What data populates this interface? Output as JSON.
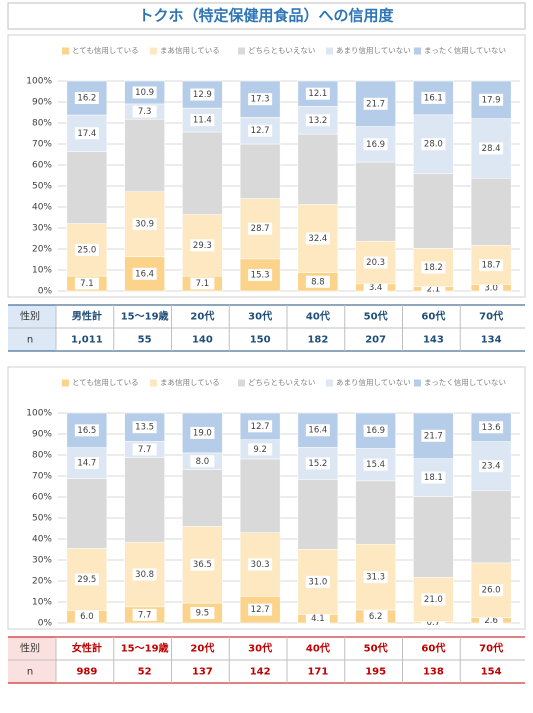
{
  "title": "トクホ（特定保健用食品）への信用度",
  "chart_data": [
    {
      "type": "bar",
      "stacked": true,
      "grid": true,
      "legend": "top",
      "categories": [
        "男性計",
        "15～19歳",
        "20代",
        "30代",
        "40代",
        "50代",
        "60代",
        "70代"
      ],
      "ylim": [
        0,
        100
      ],
      "yticks": [
        {
          "value": 0,
          "label": "0%"
        },
        {
          "value": 10,
          "label": "10%"
        },
        {
          "value": 20,
          "label": "20%"
        },
        {
          "value": 30,
          "label": "30%"
        },
        {
          "value": 40,
          "label": "40%"
        },
        {
          "value": 50,
          "label": "50%"
        },
        {
          "value": 60,
          "label": "60%"
        },
        {
          "value": 70,
          "label": "70%"
        },
        {
          "value": 80,
          "label": "80%"
        },
        {
          "value": 90,
          "label": "90%"
        },
        {
          "value": 100,
          "label": "100%"
        }
      ],
      "series": [
        {
          "name": "とても信用している",
          "color": "#fbd38a",
          "values": [
            7.1,
            16.4,
            7.1,
            15.3,
            8.8,
            3.4,
            2.1,
            3.0
          ],
          "value_labels": [
            "7.1",
            "16.4",
            "7.1",
            "15.3",
            "8.8",
            "3.4",
            "2.1",
            "3.0"
          ]
        },
        {
          "name": "まあ信用している",
          "color": "#fde8c2",
          "values": [
            25.0,
            30.9,
            29.3,
            28.7,
            32.4,
            20.3,
            18.2,
            18.7
          ],
          "value_labels": [
            "25.0",
            "30.9",
            "29.3",
            "28.7",
            "32.4",
            "20.3",
            "18.2",
            "18.7"
          ]
        },
        {
          "name": "どちらともいえない",
          "color": "#d9d9d9",
          "values": [
            34.3,
            34.5,
            39.3,
            26.0,
            33.5,
            37.7,
            35.6,
            32.0
          ]
        },
        {
          "name": "あまり信用していない",
          "color": "#dde7f4",
          "values": [
            17.4,
            7.3,
            11.4,
            12.7,
            13.2,
            16.9,
            28.0,
            28.4
          ],
          "value_labels": [
            "17.4",
            "7.3",
            "11.4",
            "12.7",
            "13.2",
            "16.9",
            "28.0",
            "28.4"
          ]
        },
        {
          "name": "まったく信用していない",
          "color": "#b6cdea",
          "values": [
            16.2,
            10.9,
            12.9,
            17.3,
            12.1,
            21.7,
            16.1,
            17.9
          ],
          "value_labels": [
            "16.2",
            "10.9",
            "12.9",
            "17.3",
            "12.1",
            "21.7",
            "16.1",
            "17.9"
          ]
        }
      ],
      "table": {
        "row_header": "性別",
        "n_label": "n",
        "n": [
          {
            "value": 1011,
            "label": "1,011"
          },
          55,
          140,
          150,
          182,
          207,
          143,
          134
        ]
      }
    },
    {
      "type": "bar",
      "stacked": true,
      "grid": true,
      "legend": "top",
      "categories": [
        "女性計",
        "15～19歳",
        "20代",
        "30代",
        "40代",
        "50代",
        "60代",
        "70代"
      ],
      "ylim": [
        0,
        100
      ],
      "yticks": [
        {
          "value": 0,
          "label": "0%"
        },
        {
          "value": 10,
          "label": "10%"
        },
        {
          "value": 20,
          "label": "20%"
        },
        {
          "value": 30,
          "label": "30%"
        },
        {
          "value": 40,
          "label": "40%"
        },
        {
          "value": 50,
          "label": "50%"
        },
        {
          "value": 60,
          "label": "60%"
        },
        {
          "value": 70,
          "label": "70%"
        },
        {
          "value": 80,
          "label": "80%"
        },
        {
          "value": 90,
          "label": "90%"
        },
        {
          "value": 100,
          "label": "100%"
        }
      ],
      "series": [
        {
          "name": "とても信用している",
          "color": "#fbd38a",
          "values": [
            6.0,
            7.7,
            9.5,
            12.7,
            4.1,
            6.2,
            0.7,
            2.6
          ],
          "value_labels": [
            "6.0",
            "7.7",
            "9.5",
            "12.7",
            "4.1",
            "6.2",
            "0.7",
            "2.6"
          ]
        },
        {
          "name": "まあ信用している",
          "color": "#fde8c2",
          "values": [
            29.5,
            30.8,
            36.5,
            30.3,
            31.0,
            31.3,
            21.0,
            26.0
          ],
          "value_labels": [
            "29.5",
            "30.8",
            "36.5",
            "30.3",
            "31.0",
            "31.3",
            "21.0",
            "26.0"
          ]
        },
        {
          "name": "どちらともいえない",
          "color": "#d9d9d9",
          "values": [
            33.3,
            40.3,
            27.0,
            35.1,
            33.3,
            30.2,
            38.5,
            34.4
          ]
        },
        {
          "name": "あまり信用していない",
          "color": "#dde7f4",
          "values": [
            14.7,
            7.7,
            8.0,
            9.2,
            15.2,
            15.4,
            18.1,
            23.4
          ],
          "value_labels": [
            "14.7",
            "7.7",
            "8.0",
            "9.2",
            "15.2",
            "15.4",
            "18.1",
            "23.4"
          ]
        },
        {
          "name": "まったく信用していない",
          "color": "#b6cdea",
          "values": [
            16.5,
            13.5,
            19.0,
            12.7,
            16.4,
            16.9,
            21.7,
            13.6
          ],
          "value_labels": [
            "16.5",
            "13.5",
            "19.0",
            "12.7",
            "16.4",
            "16.9",
            "21.7",
            "13.6"
          ]
        }
      ],
      "table": {
        "row_header": "性別",
        "n_label": "n",
        "n": [
          989,
          52,
          137,
          142,
          171,
          195,
          138,
          154
        ]
      }
    }
  ]
}
